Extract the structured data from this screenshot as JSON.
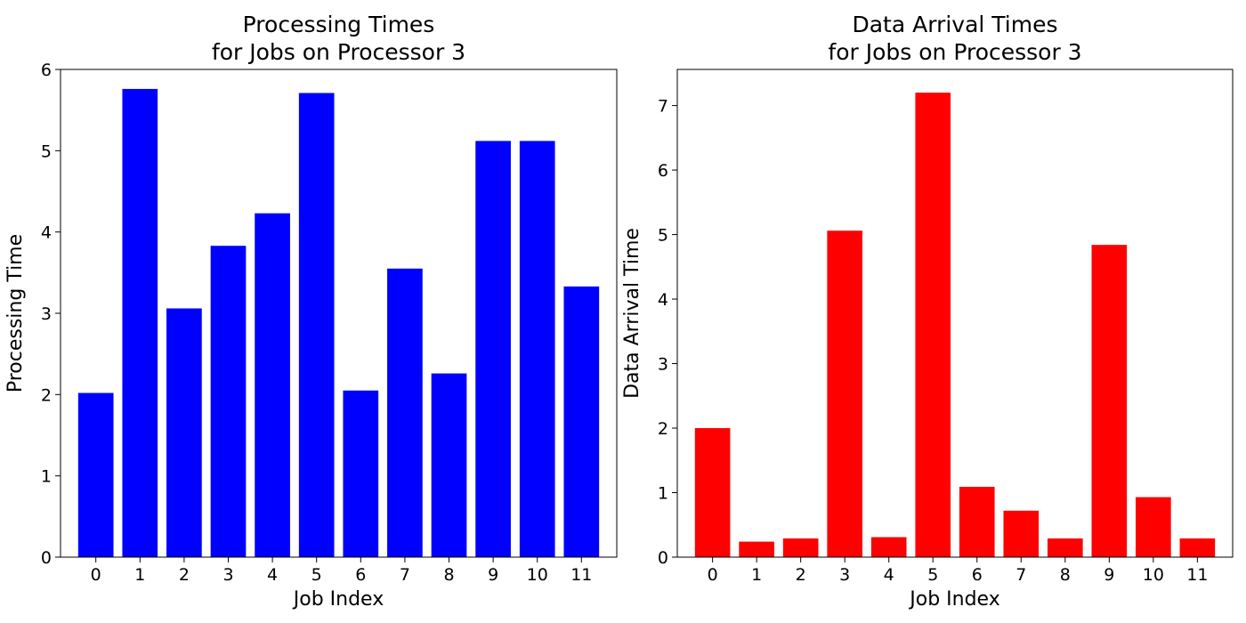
{
  "chart_data": [
    {
      "type": "bar",
      "title_lines": [
        "Processing Times",
        "for Jobs on Processor 3"
      ],
      "xlabel": "Job Index",
      "ylabel": "Processing Time",
      "categories": [
        "0",
        "1",
        "2",
        "3",
        "4",
        "5",
        "6",
        "7",
        "8",
        "9",
        "10",
        "11"
      ],
      "values": [
        2.02,
        5.76,
        3.06,
        3.83,
        4.23,
        5.71,
        2.05,
        3.55,
        2.26,
        5.12,
        5.12,
        3.33
      ],
      "ylim": [
        0,
        6.0
      ],
      "yticks": [
        0,
        1,
        2,
        3,
        4,
        5,
        6
      ],
      "color": "#0000ff",
      "grid": false
    },
    {
      "type": "bar",
      "title_lines": [
        "Data Arrival Times",
        "for Jobs on Processor 3"
      ],
      "xlabel": "Job Index",
      "ylabel": "Data Arrival Time",
      "categories": [
        "0",
        "1",
        "2",
        "3",
        "4",
        "5",
        "6",
        "7",
        "8",
        "9",
        "10",
        "11"
      ],
      "values": [
        2.0,
        0.24,
        0.29,
        5.06,
        0.31,
        7.2,
        1.09,
        0.72,
        0.29,
        4.84,
        0.93,
        0.29
      ],
      "ylim": [
        0,
        7.56
      ],
      "yticks": [
        0,
        1,
        2,
        3,
        4,
        5,
        6,
        7
      ],
      "color": "#ff0000",
      "grid": false
    }
  ]
}
